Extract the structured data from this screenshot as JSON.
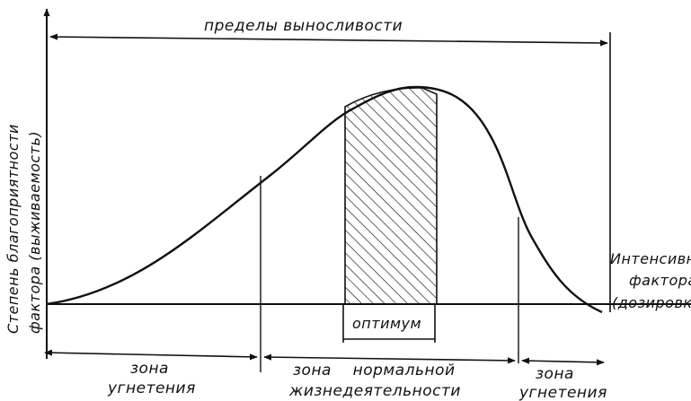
{
  "diagram": {
    "top_label": "пределы выносливости",
    "y_axis_label_line1": "Степень благоприятности",
    "y_axis_label_line2": "фактора (выживаемость)",
    "x_axis_label_line1": "Интенсивность",
    "x_axis_label_line2": "фактора",
    "x_axis_label_line3": "(дозировка)",
    "optimum_label": "оптимум",
    "zones": [
      {
        "line1": "зона",
        "line2": "угнетения"
      },
      {
        "line1": "зона    нормальной",
        "line2": "жизнедеятельности"
      },
      {
        "line1": "зона",
        "line2": "угнетения"
      }
    ],
    "colors": {
      "ink": "#111111",
      "background": "#ffffff"
    }
  }
}
